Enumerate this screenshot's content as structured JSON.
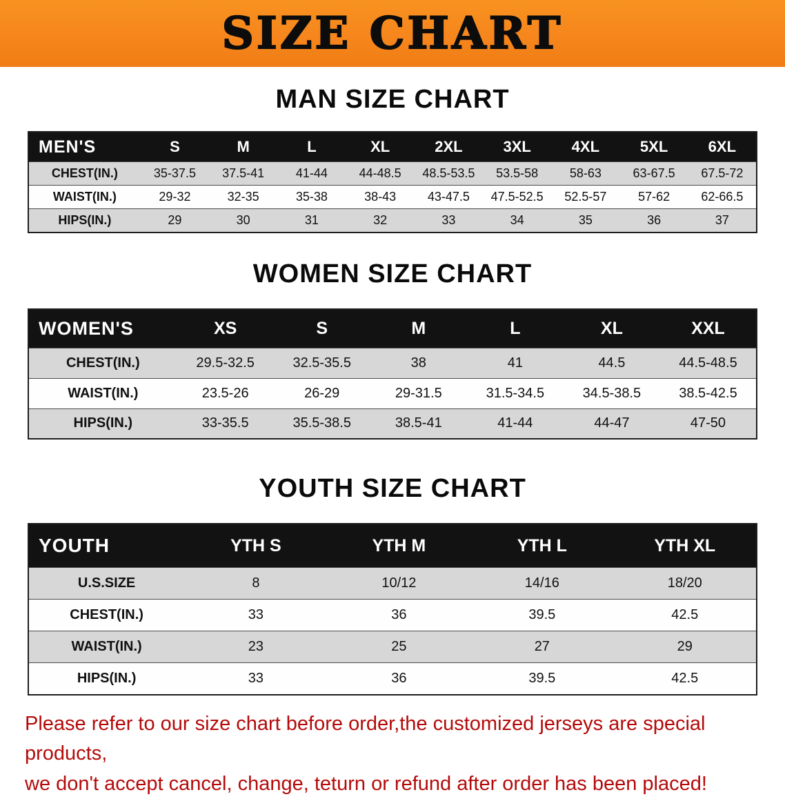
{
  "banner": {
    "title": "SIZE CHART",
    "bg_color": "#f6861d"
  },
  "sections": [
    {
      "heading": "MAN SIZE CHART",
      "table": {
        "header": [
          "MEN'S",
          "S",
          "M",
          "L",
          "XL",
          "2XL",
          "3XL",
          "4XL",
          "5XL",
          "6XL"
        ],
        "rows": [
          [
            "CHEST(IN.)",
            "35-37.5",
            "37.5-41",
            "41-44",
            "44-48.5",
            "48.5-53.5",
            "53.5-58",
            "58-63",
            "63-67.5",
            "67.5-72"
          ],
          [
            "WAIST(IN.)",
            "29-32",
            "32-35",
            "35-38",
            "38-43",
            "43-47.5",
            "47.5-52.5",
            "52.5-57",
            "57-62",
            "62-66.5"
          ],
          [
            "HIPS(IN.)",
            "29",
            "30",
            "31",
            "32",
            "33",
            "34",
            "35",
            "36",
            "37"
          ]
        ]
      }
    },
    {
      "heading": "WOMEN SIZE CHART",
      "table": {
        "header": [
          "WOMEN'S",
          "XS",
          "S",
          "M",
          "L",
          "XL",
          "XXL"
        ],
        "rows": [
          [
            "CHEST(IN.)",
            "29.5-32.5",
            "32.5-35.5",
            "38",
            "41",
            "44.5",
            "44.5-48.5"
          ],
          [
            "WAIST(IN.)",
            "23.5-26",
            "26-29",
            "29-31.5",
            "31.5-34.5",
            "34.5-38.5",
            "38.5-42.5"
          ],
          [
            "HIPS(IN.)",
            "33-35.5",
            "35.5-38.5",
            "38.5-41",
            "41-44",
            "44-47",
            "47-50"
          ]
        ]
      }
    },
    {
      "heading": "YOUTH SIZE CHART",
      "table": {
        "header": [
          "YOUTH",
          "YTH S",
          "YTH M",
          "YTH L",
          "YTH XL"
        ],
        "rows": [
          [
            "U.S.SIZE",
            "8",
            "10/12",
            "14/16",
            "18/20"
          ],
          [
            "CHEST(IN.)",
            "33",
            "36",
            "39.5",
            "42.5"
          ],
          [
            "WAIST(IN.)",
            "23",
            "25",
            "27",
            "29"
          ],
          [
            "HIPS(IN.)",
            "33",
            "36",
            "39.5",
            "42.5"
          ]
        ]
      }
    }
  ],
  "footer": {
    "line1": "Please refer to our size chart before order,the customized jerseys are special products,",
    "line2": "we don't accept cancel, change, teturn or refund after order has been placed!",
    "text_color": "#b40a0a"
  }
}
